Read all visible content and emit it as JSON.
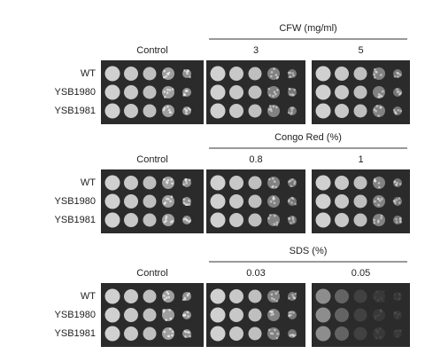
{
  "panels": [
    {
      "group_label": "CFW (mg/ml)",
      "conditions": [
        "Control",
        "3",
        "5"
      ],
      "strains": [
        "WT",
        "YSB1980",
        "YSB1981"
      ]
    },
    {
      "group_label": "Congo Red (%)",
      "conditions": [
        "Control",
        "0.8",
        "1"
      ],
      "strains": [
        "WT",
        "YSB1980",
        "YSB1981"
      ]
    },
    {
      "group_label": "SDS (%)",
      "conditions": [
        "Control",
        "0.03",
        "0.05"
      ],
      "strains": [
        "WT",
        "YSB1980",
        "YSB1981"
      ]
    }
  ]
}
